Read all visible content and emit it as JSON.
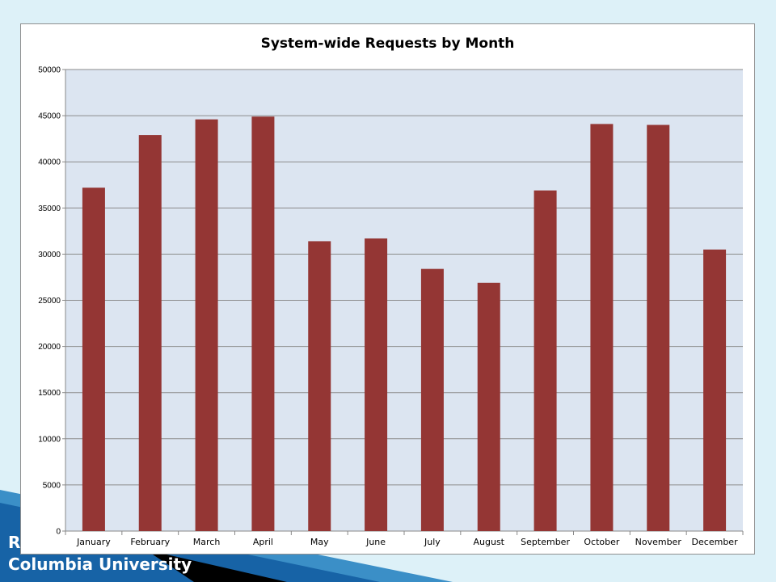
{
  "slide": {
    "footer_line1": "R",
    "footer_line2": "Columbia University"
  },
  "colors": {
    "background": "#ddf1f8",
    "plot_area": "#dce5f1",
    "bar": "#943634",
    "gridline": "#8c8c8c"
  },
  "chart_data": {
    "type": "bar",
    "title": "System-wide Requests by Month",
    "xlabel": "",
    "ylabel": "",
    "categories": [
      "January",
      "February",
      "March",
      "April",
      "May",
      "June",
      "July",
      "August",
      "September",
      "October",
      "November",
      "December"
    ],
    "values": [
      37200,
      42900,
      44600,
      44900,
      31400,
      31700,
      28400,
      26900,
      36900,
      44100,
      44000,
      30500
    ],
    "ylim": [
      0,
      50000
    ],
    "yticks": [
      0,
      5000,
      10000,
      15000,
      20000,
      25000,
      30000,
      35000,
      40000,
      45000,
      50000
    ],
    "grid": true,
    "legend": "none"
  }
}
